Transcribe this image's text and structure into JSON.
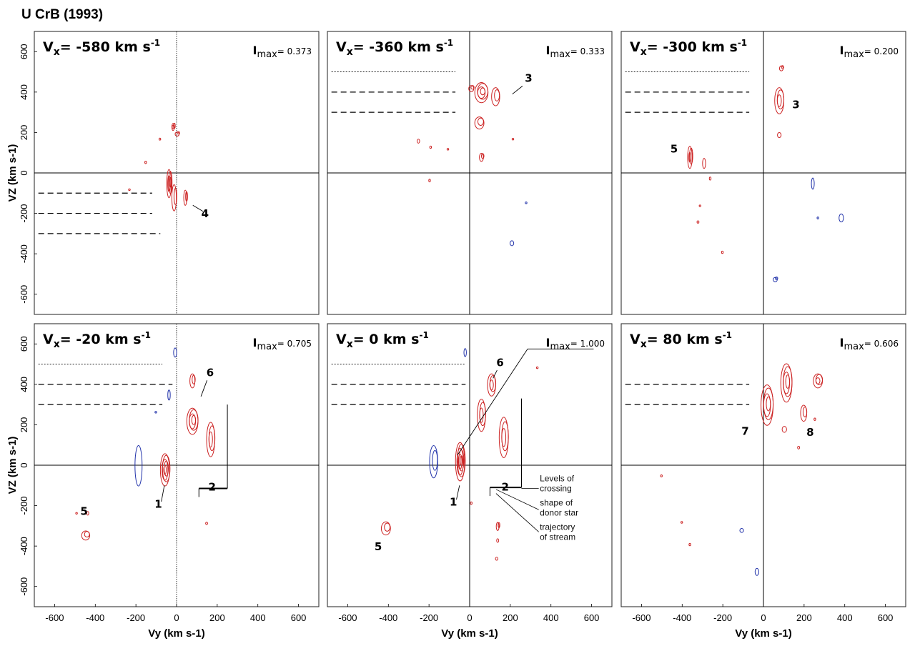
{
  "figure": {
    "title": "U CrB (1993)",
    "colors": {
      "red": "#cc2222",
      "blue": "#2233aa",
      "axis": "#000000",
      "frame": "#333333"
    }
  },
  "chart_data": [
    {
      "type": "contour",
      "vx_label": "Vx= -580 km s-1",
      "vx_text": {
        "pre": "V",
        "sub": "x",
        "mid": "= -580 km s",
        "sup": "-1"
      },
      "imax_label": "Imax= 0.373",
      "imax_text": {
        "pre": "I",
        "sub": "max",
        "post": "= 0.373"
      },
      "xlim": [
        -700,
        700
      ],
      "ylim": [
        -700,
        700
      ],
      "ylabel": "VZ (km s-1)",
      "xlabel": "",
      "xticks": [],
      "yticks": [
        "600",
        "400",
        "200",
        "0",
        "-200",
        "-400",
        "-600"
      ],
      "yvals": [
        600,
        400,
        200,
        0,
        -200,
        -400,
        -600
      ],
      "vertical_axis": "dotted",
      "dashed_levels": {
        "y": [
          -100,
          -200,
          -300
        ],
        "from": -680,
        "to": [
          -120,
          -120,
          -80
        ],
        "style": "long"
      },
      "features": [
        {
          "label": "4",
          "at": [
            140,
            -220
          ],
          "line": [
            [
              130,
              -190
            ],
            [
              80,
              -160
            ]
          ]
        }
      ],
      "red_blobs": [
        {
          "x": -15,
          "y": 230,
          "w": 12,
          "h": 35,
          "r": 3
        },
        {
          "x": 5,
          "y": 195,
          "w": 20,
          "h": 20,
          "r": 2
        },
        {
          "x": -80,
          "y": 170,
          "w": 6,
          "h": 10,
          "r": 1
        },
        {
          "x": -150,
          "y": 55,
          "w": 8,
          "h": 12,
          "r": 1
        },
        {
          "x": -35,
          "y": -50,
          "w": 22,
          "h": 140,
          "r": 4
        },
        {
          "x": -10,
          "y": -120,
          "w": 22,
          "h": 130,
          "r": 2
        },
        {
          "x": 45,
          "y": -120,
          "w": 15,
          "h": 75,
          "r": 2
        },
        {
          "x": -230,
          "y": -80,
          "w": 8,
          "h": 6,
          "r": 1
        }
      ],
      "blue_blobs": []
    },
    {
      "type": "contour",
      "vx_label": "Vx= -360 km s-1",
      "vx_text": {
        "pre": "V",
        "sub": "x",
        "mid": "= -360 km s",
        "sup": "-1"
      },
      "imax_label": "Imax= 0.333",
      "imax_text": {
        "pre": "I",
        "sub": "max",
        "post": "= 0.333"
      },
      "xlim": [
        -700,
        700
      ],
      "ylim": [
        -700,
        700
      ],
      "ylabel": "",
      "xlabel": "",
      "xticks": [],
      "yticks": [],
      "yvals": [],
      "vertical_axis": "solid",
      "dashed_levels": {
        "y": [
          500,
          400,
          300
        ],
        "from": -680,
        "to": [
          -70,
          -70,
          -70
        ],
        "style": "mixed"
      },
      "features": [
        {
          "label": "3",
          "at": [
            290,
            450
          ],
          "line": [
            [
              260,
              430
            ],
            [
              210,
              390
            ]
          ]
        }
      ],
      "red_blobs": [
        {
          "x": 60,
          "y": 400,
          "w": 65,
          "h": 100,
          "r": 4
        },
        {
          "x": 130,
          "y": 380,
          "w": 40,
          "h": 90,
          "r": 2
        },
        {
          "x": 10,
          "y": 420,
          "w": 25,
          "h": 30,
          "r": 2
        },
        {
          "x": 50,
          "y": 250,
          "w": 45,
          "h": 60,
          "r": 2
        },
        {
          "x": 60,
          "y": 80,
          "w": 20,
          "h": 40,
          "r": 2
        },
        {
          "x": -250,
          "y": 160,
          "w": 12,
          "h": 20,
          "r": 1
        },
        {
          "x": -190,
          "y": 130,
          "w": 8,
          "h": 12,
          "r": 1
        },
        {
          "x": -105,
          "y": 120,
          "w": 8,
          "h": 8,
          "r": 1
        },
        {
          "x": -195,
          "y": -35,
          "w": 8,
          "h": 14,
          "r": 1
        },
        {
          "x": 215,
          "y": 170,
          "w": 6,
          "h": 8,
          "r": 1
        }
      ],
      "blue_blobs": [
        {
          "x": 280,
          "y": -145,
          "w": 8,
          "h": 8,
          "r": 1
        },
        {
          "x": 210,
          "y": -345,
          "w": 18,
          "h": 25,
          "r": 1
        }
      ]
    },
    {
      "type": "contour",
      "vx_label": "Vx= -300 km s-1",
      "vx_text": {
        "pre": "V",
        "sub": "x",
        "mid": "= -300 km s",
        "sup": "-1"
      },
      "imax_label": "Imax= 0.200",
      "imax_text": {
        "pre": "I",
        "sub": "max",
        "post": "= 0.200"
      },
      "xlim": [
        -700,
        700
      ],
      "ylim": [
        -700,
        700
      ],
      "ylabel": "",
      "xlabel": "",
      "xticks": [],
      "yticks": [],
      "yvals": [],
      "vertical_axis": "solid",
      "dashed_levels": {
        "y": [
          500,
          400,
          300
        ],
        "from": -680,
        "to": [
          -70,
          -70,
          -70
        ],
        "style": "mixed"
      },
      "features": [
        {
          "label": "3",
          "at": [
            160,
            320
          ],
          "line": []
        },
        {
          "label": "5",
          "at": [
            -440,
            100
          ],
          "line": []
        }
      ],
      "red_blobs": [
        {
          "x": 80,
          "y": 360,
          "w": 45,
          "h": 130,
          "r": 3
        },
        {
          "x": 90,
          "y": 520,
          "w": 18,
          "h": 25,
          "r": 2
        },
        {
          "x": 80,
          "y": 190,
          "w": 18,
          "h": 25,
          "r": 1
        },
        {
          "x": -360,
          "y": 80,
          "w": 22,
          "h": 110,
          "r": 3
        },
        {
          "x": -290,
          "y": 50,
          "w": 15,
          "h": 50,
          "r": 1
        },
        {
          "x": -260,
          "y": -25,
          "w": 8,
          "h": 15,
          "r": 1
        },
        {
          "x": -310,
          "y": -160,
          "w": 6,
          "h": 8,
          "r": 1
        },
        {
          "x": -320,
          "y": -240,
          "w": 10,
          "h": 12,
          "r": 1
        },
        {
          "x": -200,
          "y": -390,
          "w": 8,
          "h": 12,
          "r": 1
        }
      ],
      "blue_blobs": [
        {
          "x": 245,
          "y": -50,
          "w": 14,
          "h": 55,
          "r": 1
        },
        {
          "x": 385,
          "y": -220,
          "w": 22,
          "h": 40,
          "r": 1
        },
        {
          "x": 270,
          "y": -220,
          "w": 6,
          "h": 10,
          "r": 1
        },
        {
          "x": 60,
          "y": -525,
          "w": 20,
          "h": 22,
          "r": 2
        }
      ]
    },
    {
      "type": "contour",
      "vx_label": "Vx= -20 km s-1",
      "vx_text": {
        "pre": "V",
        "sub": "x",
        "mid": "= -20 km s",
        "sup": "-1"
      },
      "imax_label": "Imax= 0.705",
      "imax_text": {
        "pre": "I",
        "sub": "max",
        "post": "= 0.705"
      },
      "xlim": [
        -700,
        700
      ],
      "ylim": [
        -700,
        700
      ],
      "ylabel": "VZ (km s-1)",
      "xlabel": "Vy (km s-1)",
      "xticks": [
        "-600",
        "-400",
        "-200",
        "0",
        "200",
        "400",
        "600"
      ],
      "xvals": [
        -600,
        -400,
        -200,
        0,
        200,
        400,
        600
      ],
      "yticks": [
        "600",
        "400",
        "200",
        "0",
        "-200",
        "-400",
        "-600"
      ],
      "yvals": [
        600,
        400,
        200,
        0,
        -200,
        -400,
        -600
      ],
      "vertical_axis": "dotted",
      "dashed_levels": {
        "y": [
          500,
          400,
          300
        ],
        "from": -680,
        "to": [
          -70,
          -20,
          -70
        ],
        "style": "mixed"
      },
      "features": [
        {
          "label": "1",
          "at": [
            -90,
            -210
          ],
          "line": [
            [
              -75,
              -180
            ],
            [
              -60,
              -100
            ]
          ]
        },
        {
          "label": "6",
          "at": [
            165,
            440
          ],
          "line": [
            [
              150,
              420
            ],
            [
              120,
              340
            ]
          ]
        },
        {
          "label": "5",
          "at": [
            -455,
            -245
          ],
          "line": []
        },
        {
          "label": "2",
          "at": [
            175,
            -125
          ],
          "line": []
        }
      ],
      "crossing_bar": {
        "x1": 110,
        "x2": 250,
        "y": -115,
        "top": 300
      },
      "red_blobs": [
        {
          "x": -55,
          "y": -20,
          "w": 45,
          "h": 160,
          "r": 5
        },
        {
          "x": 80,
          "y": 420,
          "w": 25,
          "h": 70,
          "r": 2
        },
        {
          "x": 80,
          "y": 220,
          "w": 55,
          "h": 130,
          "r": 4
        },
        {
          "x": 170,
          "y": 130,
          "w": 40,
          "h": 170,
          "r": 3
        },
        {
          "x": 150,
          "y": -285,
          "w": 10,
          "h": 12,
          "r": 1
        },
        {
          "x": -435,
          "y": -235,
          "w": 10,
          "h": 18,
          "r": 1
        },
        {
          "x": -445,
          "y": -345,
          "w": 40,
          "h": 45,
          "r": 2
        },
        {
          "x": -490,
          "y": -235,
          "w": 6,
          "h": 5,
          "r": 1
        }
      ],
      "blue_blobs": [
        {
          "x": -185,
          "y": 0,
          "w": 35,
          "h": 200,
          "r": 1
        },
        {
          "x": -5,
          "y": 560,
          "w": 15,
          "h": 45,
          "r": 1
        },
        {
          "x": -35,
          "y": 350,
          "w": 12,
          "h": 50,
          "r": 1
        },
        {
          "x": -100,
          "y": 265,
          "w": 6,
          "h": 8,
          "r": 1
        }
      ]
    },
    {
      "type": "contour",
      "vx_label": "Vx= 0 km s-1",
      "vx_text": {
        "pre": "V",
        "sub": "x",
        "mid": "= 0 km s",
        "sup": "-1"
      },
      "imax_label": "Imax= 1.000",
      "imax_text": {
        "pre": "I",
        "sub": "max",
        "post": "= 1.000"
      },
      "xlim": [
        -700,
        700
      ],
      "ylim": [
        -700,
        700
      ],
      "ylabel": "",
      "xlabel": "Vy (km s-1)",
      "xticks": [
        "-600",
        "-400",
        "-200",
        "0",
        "200",
        "400",
        "600"
      ],
      "xvals": [
        -600,
        -400,
        -200,
        0,
        200,
        400,
        600
      ],
      "yticks": [],
      "yvals": [],
      "vertical_axis": "solid",
      "dashed_levels": {
        "y": [
          500,
          400,
          300
        ],
        "from": -680,
        "to": [
          -20,
          -20,
          -20
        ],
        "style": "mixed"
      },
      "features": [
        {
          "label": "1",
          "at": [
            -80,
            -200
          ],
          "line": [
            [
              -65,
              -170
            ],
            [
              -50,
              -100
            ]
          ]
        },
        {
          "label": "6",
          "at": [
            150,
            490
          ],
          "line": [
            [
              135,
              470
            ],
            [
              115,
              430
            ]
          ]
        },
        {
          "label": "5",
          "at": [
            -450,
            -420
          ],
          "line": []
        },
        {
          "label": "2",
          "at": [
            175,
            -125
          ],
          "line": []
        }
      ],
      "imax_line": {
        "x1": -60,
        "y1": 50,
        "x2": 285,
        "y2": 575,
        "right": 610
      },
      "crossing_bar": {
        "x1": 100,
        "x2": 255,
        "y": -110,
        "top": 330
      },
      "annotations": [
        {
          "text": [
            "Levels of",
            "crossing"
          ],
          "at": [
            345,
            -80
          ],
          "line": [
            [
              255,
              -115
            ],
            [
              340,
              -115
            ]
          ]
        },
        {
          "text": [
            "shape of",
            "donor star"
          ],
          "at": [
            345,
            -200
          ],
          "line": [
            [
              130,
              -120
            ],
            [
              340,
              -220
            ]
          ]
        },
        {
          "text": [
            "trajectory",
            "of stream"
          ],
          "at": [
            345,
            -320
          ],
          "line": [
            [
              130,
              -140
            ],
            [
              340,
              -330
            ]
          ]
        }
      ],
      "red_blobs": [
        {
          "x": -45,
          "y": 20,
          "w": 45,
          "h": 190,
          "r": 6
        },
        {
          "x": 110,
          "y": 400,
          "w": 40,
          "h": 110,
          "r": 3
        },
        {
          "x": 60,
          "y": 250,
          "w": 40,
          "h": 160,
          "r": 3
        },
        {
          "x": 170,
          "y": 140,
          "w": 45,
          "h": 200,
          "r": 3
        },
        {
          "x": 140,
          "y": -300,
          "w": 14,
          "h": 40,
          "r": 2
        },
        {
          "x": 140,
          "y": -370,
          "w": 10,
          "h": 18,
          "r": 1
        },
        {
          "x": 135,
          "y": -460,
          "w": 12,
          "h": 15,
          "r": 1
        },
        {
          "x": 10,
          "y": -185,
          "w": 8,
          "h": 12,
          "r": 1
        },
        {
          "x": -410,
          "y": -310,
          "w": 45,
          "h": 65,
          "r": 2
        },
        {
          "x": 335,
          "y": 485,
          "w": 6,
          "h": 8,
          "r": 1
        }
      ],
      "blue_blobs": [
        {
          "x": -175,
          "y": 20,
          "w": 40,
          "h": 160,
          "r": 2
        },
        {
          "x": -20,
          "y": 560,
          "w": 12,
          "h": 40,
          "r": 1
        }
      ]
    },
    {
      "type": "contour",
      "vx_label": "Vx= 80 km s-1",
      "vx_text": {
        "pre": "V",
        "sub": "x",
        "mid": "= 80 km s",
        "sup": "-1"
      },
      "imax_label": "Imax= 0.606",
      "imax_text": {
        "pre": "I",
        "sub": "max",
        "post": "= 0.606"
      },
      "xlim": [
        -700,
        700
      ],
      "ylim": [
        -700,
        700
      ],
      "ylabel": "",
      "xlabel": "Vy (km s-1)",
      "xticks": [
        "-600",
        "-400",
        "-200",
        "0",
        "200",
        "400",
        "600"
      ],
      "xvals": [
        -600,
        -400,
        -200,
        0,
        200,
        400,
        600
      ],
      "yticks": [],
      "yvals": [],
      "vertical_axis": "solid",
      "dashed_levels": {
        "y": [
          400,
          300
        ],
        "from": -680,
        "to": [
          -70,
          -70
        ],
        "style": "long"
      },
      "features": [
        {
          "label": "7",
          "at": [
            -90,
            150
          ],
          "line": []
        },
        {
          "label": "8",
          "at": [
            230,
            145
          ],
          "line": []
        }
      ],
      "red_blobs": [
        {
          "x": 20,
          "y": 300,
          "w": 60,
          "h": 200,
          "r": 4
        },
        {
          "x": 115,
          "y": 410,
          "w": 55,
          "h": 190,
          "r": 4
        },
        {
          "x": 270,
          "y": 420,
          "w": 45,
          "h": 70,
          "r": 3
        },
        {
          "x": 200,
          "y": 260,
          "w": 30,
          "h": 80,
          "r": 2
        },
        {
          "x": 105,
          "y": 180,
          "w": 22,
          "h": 30,
          "r": 1
        },
        {
          "x": 175,
          "y": 90,
          "w": 10,
          "h": 14,
          "r": 1
        },
        {
          "x": 255,
          "y": 230,
          "w": 8,
          "h": 12,
          "r": 1
        },
        {
          "x": -500,
          "y": -50,
          "w": 6,
          "h": 10,
          "r": 1
        },
        {
          "x": -400,
          "y": -280,
          "w": 6,
          "h": 8,
          "r": 1
        },
        {
          "x": -360,
          "y": -390,
          "w": 7,
          "h": 12,
          "r": 1
        }
      ],
      "blue_blobs": [
        {
          "x": -105,
          "y": -320,
          "w": 18,
          "h": 20,
          "r": 1
        },
        {
          "x": -30,
          "y": -525,
          "w": 18,
          "h": 35,
          "r": 1
        }
      ]
    }
  ]
}
